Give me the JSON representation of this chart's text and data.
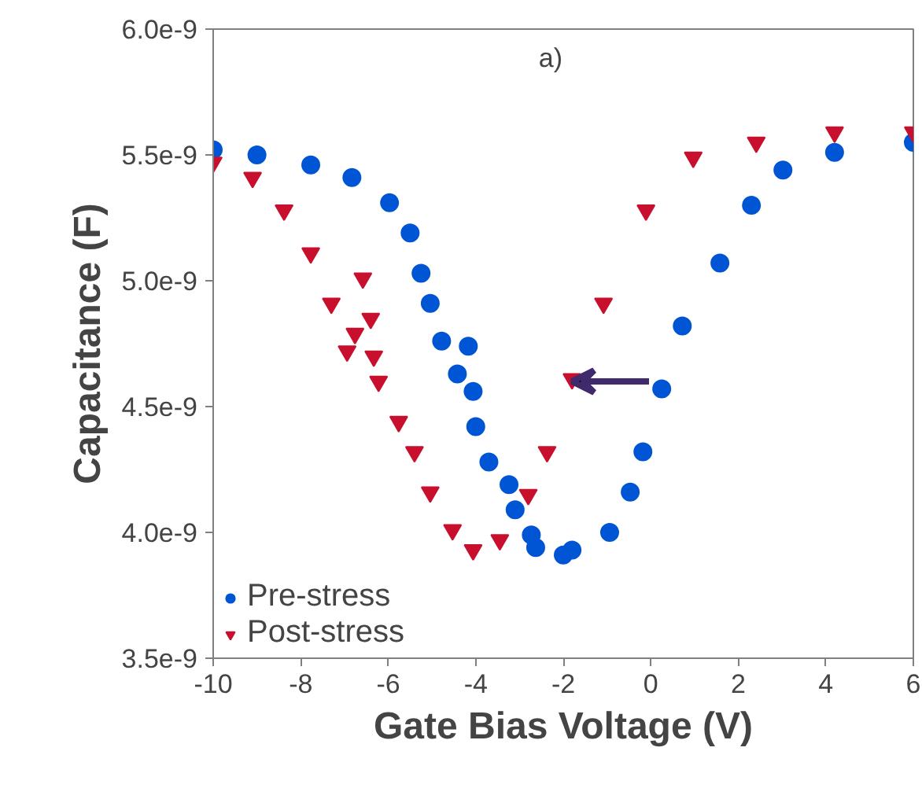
{
  "chart_data": {
    "type": "scatter",
    "xlabel": "Gate Bias Voltage (V)",
    "ylabel": "Capacitance (F)",
    "annotations": [
      "a)"
    ],
    "xlim": [
      -10,
      6
    ],
    "xticks": [
      -10,
      -8,
      -6,
      -4,
      -2,
      0,
      2,
      4,
      6
    ],
    "ylim": [
      3.5e-09,
      6e-09
    ],
    "yticks": [
      {
        "value": 3.5e-09,
        "label": "3.5e-9"
      },
      {
        "value": 4e-09,
        "label": "4.0e-9"
      },
      {
        "value": 4.5e-09,
        "label": "4.5e-9"
      },
      {
        "value": 5e-09,
        "label": "5.0e-9"
      },
      {
        "value": 5.5e-09,
        "label": "5.5e-9"
      },
      {
        "value": 6e-09,
        "label": "6.0e-9"
      }
    ],
    "grid": false,
    "legend": "bottom left",
    "series": [
      {
        "name": "Pre-stress",
        "color": "#0055d4",
        "marker": "circle",
        "x": [
          -10,
          -9.0,
          -7.77,
          -6.83,
          -5.97,
          -5.5,
          -5.25,
          -5.04,
          -4.78,
          -4.42,
          -4.17,
          -4.06,
          -4.0,
          -3.7,
          -3.24,
          -3.1,
          -2.73,
          -2.63,
          -2.0,
          -1.8,
          -0.94,
          -0.47,
          -0.18,
          0.25,
          0.72,
          1.58,
          2.3,
          3.02,
          4.2,
          6.0
        ],
        "values": [
          5.52e-09,
          5.5e-09,
          5.46e-09,
          5.41e-09,
          5.31e-09,
          5.19e-09,
          5.03e-09,
          4.91e-09,
          4.76e-09,
          4.63e-09,
          4.74e-09,
          4.56e-09,
          4.42e-09,
          4.28e-09,
          4.19e-09,
          4.09e-09,
          3.99e-09,
          3.94e-09,
          3.91e-09,
          3.93e-09,
          4e-09,
          4.16e-09,
          4.32e-09,
          4.57e-09,
          4.82e-09,
          5.07e-09,
          5.3e-09,
          5.44e-09,
          5.51e-09,
          5.55e-09
        ]
      },
      {
        "name": "Post-stress",
        "color": "#c8102e",
        "marker": "triangle",
        "x": [
          -10,
          -9.1,
          -8.38,
          -7.77,
          -7.3,
          -6.94,
          -6.58,
          -6.4,
          -6.76,
          -6.33,
          -6.22,
          -5.76,
          -5.4,
          -5.04,
          -4.53,
          -4.06,
          -3.45,
          -2.8,
          -2.37,
          -1.8,
          -1.08,
          -0.11,
          0.97,
          2.41,
          4.2,
          6.0
        ],
        "values": [
          5.47e-09,
          5.41e-09,
          5.28e-09,
          5.11e-09,
          4.91e-09,
          4.72e-09,
          5.01e-09,
          4.85e-09,
          4.79e-09,
          4.7e-09,
          4.6e-09,
          4.44e-09,
          4.32e-09,
          4.16e-09,
          4.01e-09,
          3.93e-09,
          3.97e-09,
          4.15e-09,
          4.32e-09,
          4.61e-09,
          4.91e-09,
          5.28e-09,
          5.49e-09,
          5.55e-09,
          5.59e-09,
          5.59e-09
        ]
      }
    ]
  }
}
